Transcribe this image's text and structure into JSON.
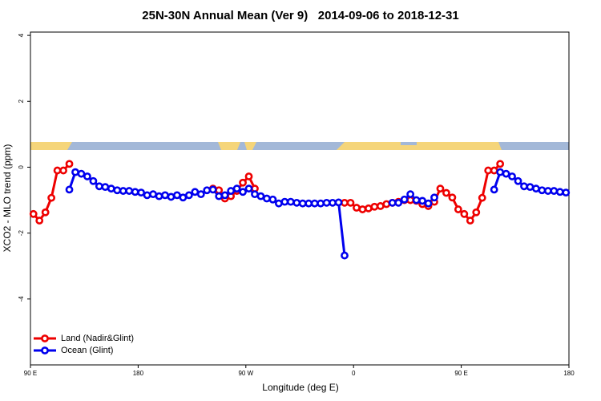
{
  "chart_data": {
    "type": "line",
    "title": "25N-30N Annual Mean (Ver 9)   2014-09-06 to 2018-12-31",
    "x_label": "Longitude (deg E)",
    "y_label": "XCO2 - MLO trend (ppm)",
    "xlim": [
      90,
      540
    ],
    "xticks": [
      {
        "value": 90,
        "label": "90 E"
      },
      {
        "value": 180,
        "label": "180"
      },
      {
        "value": 270,
        "label": "90 W"
      },
      {
        "value": 360,
        "label": "0"
      },
      {
        "value": 450,
        "label": "90 E"
      },
      {
        "value": 540,
        "label": "180"
      }
    ],
    "ylim": [
      -6,
      4.1
    ],
    "yticks": [
      -4,
      -2,
      0,
      2,
      4
    ],
    "legend": "bottom-left",
    "x": [
      92.5,
      97.5,
      102.5,
      107.5,
      112.5,
      117.5,
      122.5,
      127.5,
      132.5,
      137.5,
      142.5,
      147.5,
      152.5,
      157.5,
      162.5,
      167.5,
      172.5,
      177.5,
      182.5,
      187.5,
      192.5,
      197.5,
      202.5,
      207.5,
      212.5,
      217.5,
      222.5,
      227.5,
      232.5,
      237.5,
      242.5,
      247.5,
      252.5,
      257.5,
      262.5,
      267.5,
      272.5,
      277.5,
      282.5,
      287.5,
      292.5,
      297.5,
      302.5,
      307.5,
      312.5,
      317.5,
      322.5,
      327.5,
      332.5,
      337.5,
      342.5,
      347.5,
      352.5,
      357.5,
      362.5,
      367.5,
      372.5,
      377.5,
      382.5,
      387.5,
      392.5,
      397.5,
      402.5,
      407.5,
      412.5,
      417.5,
      422.5,
      427.5,
      432.5,
      437.5,
      442.5,
      447.5,
      452.5,
      457.5,
      462.5,
      467.5,
      472.5,
      477.5,
      482.5,
      487.5,
      492.5,
      497.5,
      502.5,
      507.5,
      512.5,
      517.5,
      522.5,
      527.5,
      532.5,
      537.5
    ],
    "series": [
      {
        "name": "Land (Nadir&Glint)",
        "color": "#ee0000",
        "values": [
          -1.42,
          -1.62,
          -1.37,
          -0.93,
          -0.1,
          -0.1,
          0.1,
          null,
          null,
          null,
          null,
          null,
          null,
          null,
          null,
          null,
          null,
          null,
          null,
          null,
          null,
          null,
          null,
          null,
          null,
          null,
          null,
          null,
          null,
          null,
          -0.65,
          -0.7,
          -0.95,
          -0.88,
          -0.72,
          -0.47,
          -0.28,
          -0.65,
          null,
          null,
          null,
          null,
          null,
          null,
          null,
          null,
          null,
          null,
          null,
          null,
          null,
          null,
          -1.08,
          -1.08,
          -1.23,
          -1.28,
          -1.25,
          -1.2,
          -1.18,
          -1.12,
          -1.08,
          -1.05,
          -1.0,
          -1.0,
          -1.02,
          -1.12,
          -1.18,
          -1.05,
          -0.65,
          -0.78,
          -0.92,
          -1.28,
          -1.42,
          -1.62,
          -1.37,
          -0.93,
          -0.1,
          -0.1,
          0.1,
          null,
          null,
          null,
          null,
          null,
          null,
          null,
          null,
          null,
          null,
          null
        ]
      },
      {
        "name": "Ocean (Glint)",
        "color": "#0000ee",
        "values": [
          null,
          null,
          null,
          null,
          null,
          null,
          -0.68,
          -0.15,
          -0.2,
          -0.28,
          -0.42,
          -0.58,
          -0.6,
          -0.65,
          -0.7,
          -0.72,
          -0.72,
          -0.75,
          -0.77,
          -0.85,
          -0.82,
          -0.88,
          -0.85,
          -0.9,
          -0.85,
          -0.92,
          -0.85,
          -0.75,
          -0.82,
          -0.7,
          -0.68,
          -0.88,
          -0.85,
          -0.72,
          -0.65,
          -0.75,
          -0.65,
          -0.82,
          -0.88,
          -0.95,
          -0.98,
          -1.1,
          -1.05,
          -1.05,
          -1.08,
          -1.1,
          -1.1,
          -1.1,
          -1.1,
          -1.08,
          -1.08,
          -1.07,
          -2.68,
          null,
          null,
          null,
          null,
          null,
          null,
          null,
          -1.08,
          -1.08,
          -0.98,
          -0.82,
          -1.0,
          -1.02,
          -1.1,
          -0.92,
          null,
          null,
          null,
          null,
          null,
          null,
          null,
          null,
          null,
          -0.68,
          -0.15,
          -0.2,
          -0.28,
          -0.42,
          -0.58,
          -0.6,
          -0.65,
          -0.7,
          -0.72,
          -0.72,
          -0.75,
          -0.77
        ]
      }
    ]
  }
}
